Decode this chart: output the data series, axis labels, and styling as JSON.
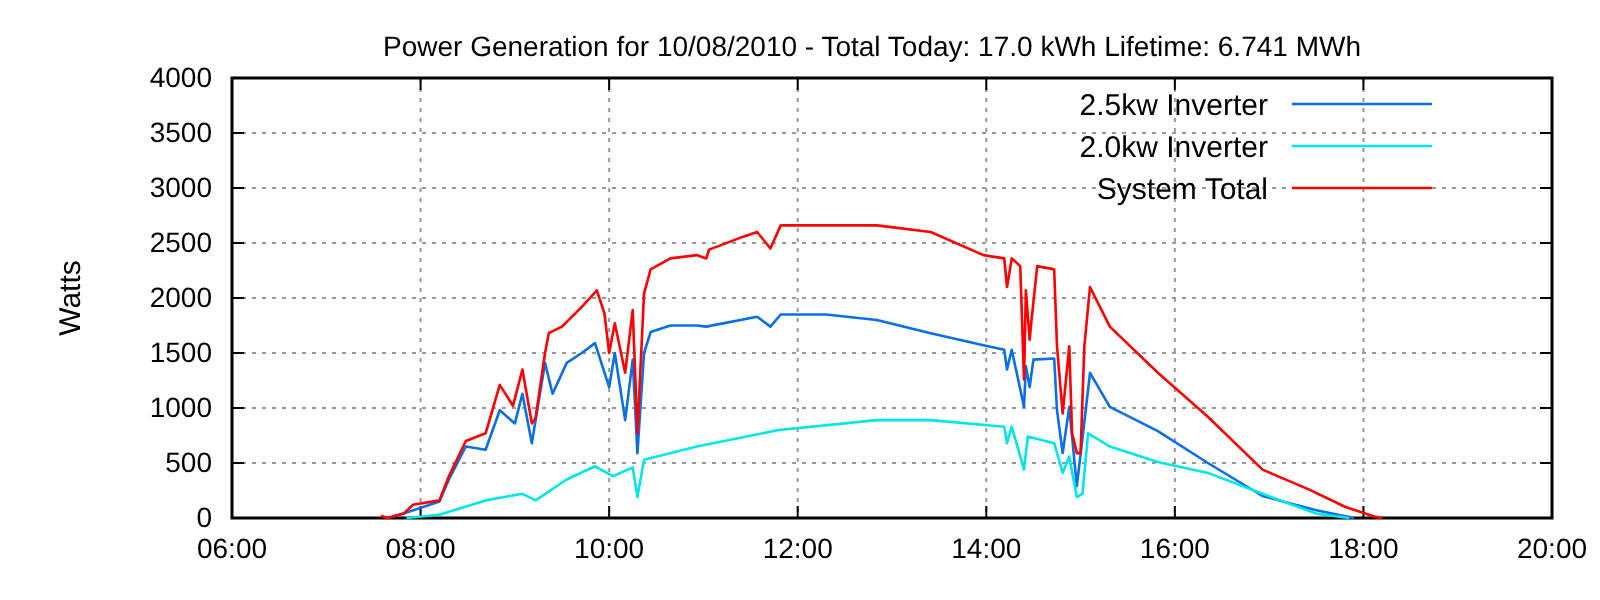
{
  "chart_data": {
    "type": "line",
    "title": "Power Generation for 10/08/2010 - Total Today: 17.0 kWh   Lifetime: 6.741 MWh",
    "ylabel": "Watts",
    "xlim": [
      6,
      20
    ],
    "ylim": [
      0,
      4000
    ],
    "xticks": [
      {
        "value": 6,
        "label": "06:00"
      },
      {
        "value": 8,
        "label": "08:00"
      },
      {
        "value": 10,
        "label": "10:00"
      },
      {
        "value": 12,
        "label": "12:00"
      },
      {
        "value": 14,
        "label": "14:00"
      },
      {
        "value": 16,
        "label": "16:00"
      },
      {
        "value": 18,
        "label": "18:00"
      },
      {
        "value": 20,
        "label": "20:00"
      }
    ],
    "yticks": [
      0,
      500,
      1000,
      1500,
      2000,
      2500,
      3000,
      3500,
      4000
    ],
    "grid": true,
    "legend": "top right",
    "marker": "none",
    "line_style": "solid",
    "series": [
      {
        "name": "2.5kw Inverter",
        "color": "#0a6ee6",
        "x": [
          7.65,
          7.82,
          8.2,
          8.3,
          8.48,
          8.69,
          8.84,
          9.0,
          9.08,
          9.18,
          9.32,
          9.4,
          9.55,
          9.71,
          9.85,
          10.0,
          10.06,
          10.17,
          10.25,
          10.3,
          10.37,
          10.44,
          10.65,
          10.93,
          11.03,
          11.57,
          11.71,
          11.82,
          12.3,
          12.84,
          13.41,
          13.97,
          14.19,
          14.22,
          14.27,
          14.4,
          14.42,
          14.46,
          14.5,
          14.72,
          14.75,
          14.81,
          14.88,
          14.96,
          15.01,
          15.1,
          15.31,
          15.82,
          16.35,
          16.93,
          17.5,
          17.85,
          17.9
        ],
        "values": [
          0,
          40,
          150,
          350,
          650,
          620,
          980,
          860,
          1130,
          680,
          1410,
          1130,
          1410,
          1500,
          1590,
          1190,
          1500,
          890,
          1440,
          590,
          1500,
          1690,
          1750,
          1750,
          1740,
          1830,
          1740,
          1850,
          1850,
          1800,
          1680,
          1570,
          1530,
          1350,
          1530,
          1010,
          1380,
          1190,
          1440,
          1450,
          980,
          590,
          1010,
          290,
          650,
          1320,
          1010,
          790,
          500,
          200,
          70,
          10,
          0
        ]
      },
      {
        "name": "2.0kw Inverter",
        "color": "#00e6e6",
        "x": [
          7.85,
          8.2,
          8.69,
          9.08,
          9.22,
          9.55,
          9.85,
          10.04,
          10.25,
          10.3,
          10.37,
          10.93,
          11.8,
          12.84,
          13.41,
          14.19,
          14.22,
          14.27,
          14.4,
          14.44,
          14.72,
          14.81,
          14.88,
          14.96,
          15.02,
          15.08,
          15.31,
          15.82,
          16.35,
          16.93,
          17.5,
          17.85
        ],
        "values": [
          0,
          30,
          160,
          220,
          160,
          350,
          470,
          380,
          460,
          190,
          530,
          650,
          800,
          890,
          890,
          830,
          680,
          830,
          440,
          740,
          680,
          410,
          560,
          190,
          220,
          770,
          650,
          510,
          410,
          220,
          40,
          0
        ]
      },
      {
        "name": "System Total",
        "color": "#ff0000",
        "x": [
          7.58,
          7.65,
          7.82,
          7.92,
          8.2,
          8.3,
          8.48,
          8.69,
          8.84,
          8.98,
          9.08,
          9.18,
          9.22,
          9.32,
          9.36,
          9.5,
          9.71,
          9.87,
          9.95,
          10.0,
          10.06,
          10.17,
          10.25,
          10.3,
          10.37,
          10.44,
          10.65,
          10.93,
          11.03,
          11.06,
          11.43,
          11.57,
          11.71,
          11.82,
          12.84,
          13.41,
          13.97,
          14.19,
          14.22,
          14.27,
          14.36,
          14.4,
          14.42,
          14.46,
          14.48,
          14.54,
          14.72,
          14.75,
          14.81,
          14.88,
          14.91,
          14.96,
          15.0,
          15.04,
          15.1,
          15.31,
          15.82,
          16.35,
          16.93,
          17.42,
          17.81,
          18.13,
          18.2
        ],
        "values": [
          20,
          0,
          40,
          120,
          160,
          380,
          700,
          770,
          1210,
          1020,
          1350,
          860,
          910,
          1500,
          1680,
          1740,
          1920,
          2070,
          1860,
          1500,
          1770,
          1320,
          1890,
          770,
          2040,
          2260,
          2360,
          2390,
          2360,
          2440,
          2560,
          2600,
          2450,
          2660,
          2660,
          2600,
          2390,
          2360,
          2100,
          2360,
          2290,
          1260,
          2070,
          1620,
          1800,
          2290,
          2260,
          1560,
          950,
          1560,
          770,
          590,
          590,
          1560,
          2100,
          1740,
          1320,
          920,
          440,
          260,
          100,
          10,
          0
        ]
      }
    ]
  }
}
